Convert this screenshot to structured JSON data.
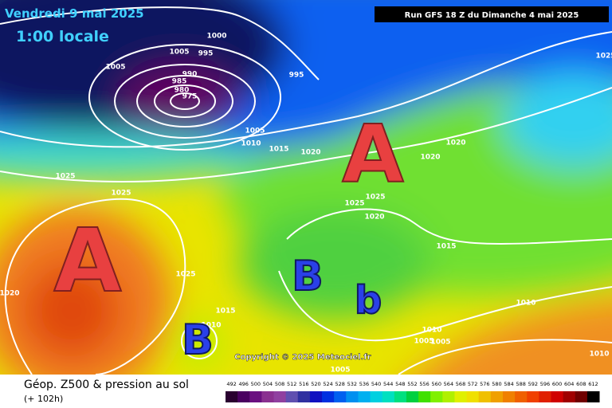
{
  "header": {
    "date": "Vendredi 9 mai 2025",
    "time": "1:00 locale",
    "run": "Run GFS 18 Z du Dimanche 4 mai 2025"
  },
  "map": {
    "isobar_labels": [
      1000,
      1005,
      995,
      990,
      985,
      980,
      975,
      995,
      1005,
      1005,
      1010,
      1015,
      1020,
      1025,
      1025,
      1020,
      1020,
      1025,
      1025,
      1020,
      1015,
      1025,
      1020,
      1015,
      1010,
      1010,
      1005,
      1005,
      1010,
      1005,
      1010,
      1025
    ],
    "pressure_centers": [
      "A",
      "A",
      "B",
      "B",
      "b"
    ],
    "copyright": "Copyright © 2025 Meteociel.fr"
  },
  "footer": {
    "title": "Géop. Z500 & pression au sol",
    "lead_time": "(+ 102h)",
    "colorbar": {
      "labels": [
        492,
        496,
        500,
        504,
        508,
        512,
        516,
        520,
        524,
        528,
        532,
        536,
        540,
        544,
        548,
        552,
        556,
        560,
        564,
        568,
        572,
        576,
        580,
        584,
        588,
        592,
        596,
        600,
        604,
        608,
        612
      ],
      "colors": [
        "#2a0030",
        "#4a0060",
        "#6a1080",
        "#8a3090",
        "#9040a0",
        "#6050b0",
        "#3030a0",
        "#1010c0",
        "#0030e0",
        "#0060f0",
        "#0090f0",
        "#00b0f0",
        "#00d0e0",
        "#00e0c0",
        "#00e080",
        "#00d040",
        "#40e000",
        "#80f000",
        "#b0f000",
        "#e0f000",
        "#f0e000",
        "#f0c000",
        "#f0a000",
        "#f08000",
        "#f06000",
        "#f04000",
        "#e02000",
        "#d00000",
        "#a00000",
        "#700000",
        "#000000"
      ]
    }
  }
}
